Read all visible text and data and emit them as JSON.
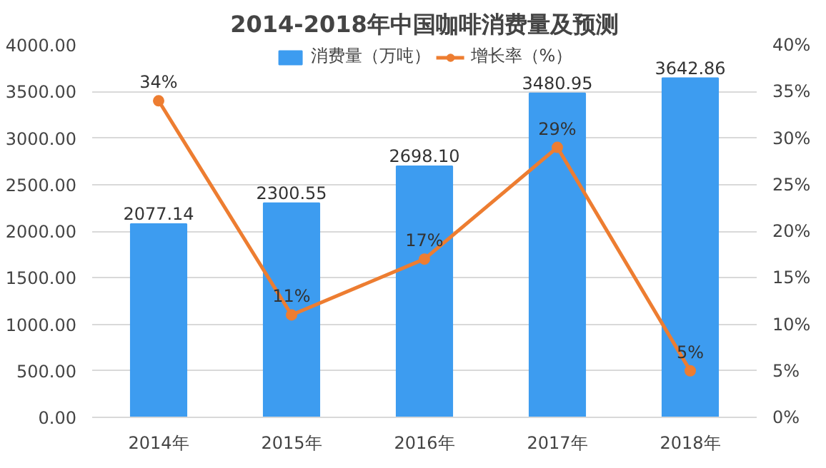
{
  "chart_data": {
    "type": "bar",
    "title": "2014-2018年中国咖啡消费量及预测",
    "categories": [
      "2014年",
      "2015年",
      "2016年",
      "2017年",
      "2018年"
    ],
    "series": [
      {
        "name": "消费量（万吨）",
        "color": "#3d9cf0",
        "values": [
          2077.14,
          2300.55,
          2698.1,
          3480.95,
          3642.86
        ],
        "value_labels": [
          "2077.14",
          "2300.55",
          "2698.10",
          "3480.95",
          "3642.86"
        ]
      },
      {
        "name": "增长率（%）",
        "type": "line",
        "axis": "y2",
        "color": "#ed7d31",
        "values": [
          34,
          11,
          17,
          29,
          5
        ],
        "value_labels": [
          "34%",
          "11%",
          "17%",
          "29%",
          "5%"
        ]
      }
    ],
    "ylim": [
      0,
      4000
    ],
    "yticks": [
      {
        "value": 0,
        "label": "0.00"
      },
      {
        "value": 500,
        "label": "500.00"
      },
      {
        "value": 1000,
        "label": "1000.00"
      },
      {
        "value": 1500,
        "label": "1500.00"
      },
      {
        "value": 2000,
        "label": "2000.00"
      },
      {
        "value": 2500,
        "label": "2500.00"
      },
      {
        "value": 3000,
        "label": "3000.00"
      },
      {
        "value": 3500,
        "label": "3500.00"
      },
      {
        "value": 4000,
        "label": "4000.00"
      }
    ],
    "y2lim": [
      0,
      40
    ],
    "y2ticks": [
      {
        "value": 0,
        "label": "0%"
      },
      {
        "value": 5,
        "label": "5%"
      },
      {
        "value": 10,
        "label": "10%"
      },
      {
        "value": 15,
        "label": "15%"
      },
      {
        "value": 20,
        "label": "20%"
      },
      {
        "value": 25,
        "label": "25%"
      },
      {
        "value": 30,
        "label": "30%"
      },
      {
        "value": 35,
        "label": "35%"
      },
      {
        "value": 40,
        "label": "40%"
      }
    ],
    "grid": "y",
    "legend": "top",
    "marker": "circle",
    "line_style": "solid"
  }
}
